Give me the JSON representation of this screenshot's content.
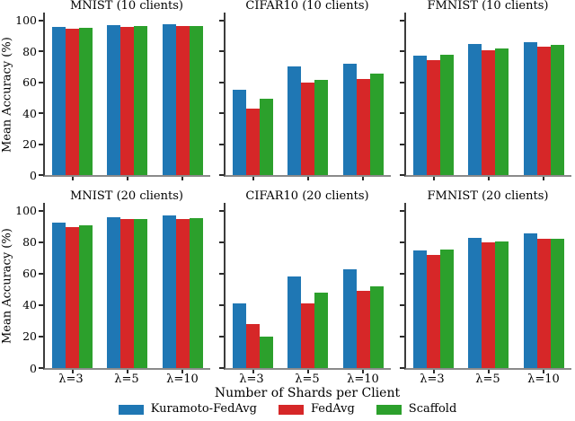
{
  "figure": {
    "ylabel": "Mean Accuracy (%)",
    "xlabel": "Number of Shards per Client",
    "background": "#ffffff",
    "spine_color": "#3c3c3c",
    "axis_line_color": "#8a8a8a",
    "legend": [
      {
        "label": "Kuramoto-FedAvg",
        "color": "#1f77b4"
      },
      {
        "label": "FedAvg",
        "color": "#d62728"
      },
      {
        "label": "Scaffold",
        "color": "#2ca02c"
      }
    ]
  },
  "chart_data": [
    {
      "type": "bar",
      "title": "MNIST (10 clients)",
      "categories": [
        "λ=3",
        "λ=5",
        "λ=10"
      ],
      "series": [
        {
          "name": "Kuramoto-FedAvg",
          "color": "#1f77b4",
          "values": [
            96,
            97,
            97.5
          ]
        },
        {
          "name": "FedAvg",
          "color": "#d62728",
          "values": [
            94.5,
            96,
            96.5
          ]
        },
        {
          "name": "Scaffold",
          "color": "#2ca02c",
          "values": [
            95,
            96.5,
            96.5
          ]
        }
      ],
      "ylim": [
        0,
        105
      ],
      "yticks": [
        0,
        20,
        40,
        60,
        80,
        100
      ],
      "show_ytick_labels": true,
      "show_xtick_labels": false,
      "grid": false
    },
    {
      "type": "bar",
      "title": "CIFAR10 (10 clients)",
      "categories": [
        "λ=3",
        "λ=5",
        "λ=10"
      ],
      "series": [
        {
          "name": "Kuramoto-FedAvg",
          "color": "#1f77b4",
          "values": [
            55,
            70,
            72
          ]
        },
        {
          "name": "FedAvg",
          "color": "#d62728",
          "values": [
            43,
            59.5,
            62
          ]
        },
        {
          "name": "Scaffold",
          "color": "#2ca02c",
          "values": [
            49.5,
            61.5,
            65.5
          ]
        }
      ],
      "ylim": [
        0,
        105
      ],
      "yticks": [
        0,
        20,
        40,
        60,
        80,
        100
      ],
      "show_ytick_labels": false,
      "show_xtick_labels": false,
      "grid": false
    },
    {
      "type": "bar",
      "title": "FMNIST (10 clients)",
      "categories": [
        "λ=3",
        "λ=5",
        "λ=10"
      ],
      "series": [
        {
          "name": "Kuramoto-FedAvg",
          "color": "#1f77b4",
          "values": [
            77,
            84.5,
            86
          ]
        },
        {
          "name": "FedAvg",
          "color": "#d62728",
          "values": [
            74,
            80.5,
            83
          ]
        },
        {
          "name": "Scaffold",
          "color": "#2ca02c",
          "values": [
            78,
            82,
            84
          ]
        }
      ],
      "ylim": [
        0,
        105
      ],
      "yticks": [
        0,
        20,
        40,
        60,
        80,
        100
      ],
      "show_ytick_labels": false,
      "show_xtick_labels": false,
      "grid": false
    },
    {
      "type": "bar",
      "title": "MNIST (20 clients)",
      "categories": [
        "λ=3",
        "λ=5",
        "λ=10"
      ],
      "series": [
        {
          "name": "Kuramoto-FedAvg",
          "color": "#1f77b4",
          "values": [
            92.5,
            96,
            97
          ]
        },
        {
          "name": "FedAvg",
          "color": "#d62728",
          "values": [
            89.5,
            94.5,
            95
          ]
        },
        {
          "name": "Scaffold",
          "color": "#2ca02c",
          "values": [
            91,
            94.5,
            95.5
          ]
        }
      ],
      "ylim": [
        0,
        105
      ],
      "yticks": [
        0,
        20,
        40,
        60,
        80,
        100
      ],
      "show_ytick_labels": true,
      "show_xtick_labels": true,
      "grid": false
    },
    {
      "type": "bar",
      "title": "CIFAR10 (20 clients)",
      "categories": [
        "λ=3",
        "λ=5",
        "λ=10"
      ],
      "series": [
        {
          "name": "Kuramoto-FedAvg",
          "color": "#1f77b4",
          "values": [
            41,
            58,
            63
          ]
        },
        {
          "name": "FedAvg",
          "color": "#d62728",
          "values": [
            28,
            41,
            49
          ]
        },
        {
          "name": "Scaffold",
          "color": "#2ca02c",
          "values": [
            20,
            48,
            52
          ]
        }
      ],
      "ylim": [
        0,
        105
      ],
      "yticks": [
        0,
        20,
        40,
        60,
        80,
        100
      ],
      "show_ytick_labels": false,
      "show_xtick_labels": true,
      "grid": false
    },
    {
      "type": "bar",
      "title": "FMNIST (20 clients)",
      "categories": [
        "λ=3",
        "λ=5",
        "λ=10"
      ],
      "series": [
        {
          "name": "Kuramoto-FedAvg",
          "color": "#1f77b4",
          "values": [
            75,
            83,
            85.5
          ]
        },
        {
          "name": "FedAvg",
          "color": "#d62728",
          "values": [
            72,
            80,
            82
          ]
        },
        {
          "name": "Scaffold",
          "color": "#2ca02c",
          "values": [
            75.5,
            80.5,
            82
          ]
        }
      ],
      "ylim": [
        0,
        105
      ],
      "yticks": [
        0,
        20,
        40,
        60,
        80,
        100
      ],
      "show_ytick_labels": false,
      "show_xtick_labels": true,
      "grid": false
    }
  ]
}
